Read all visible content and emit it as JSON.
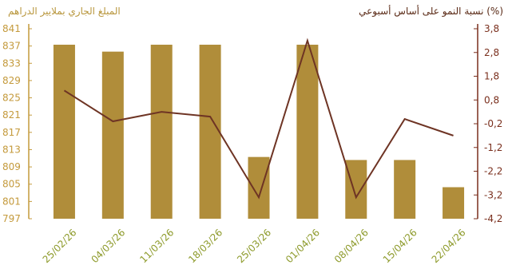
{
  "chart_data": {
    "type": "bar",
    "title": "",
    "left_axis_title": "المبلغ الجاري بملايير الدراهم",
    "right_axis_title": "(%) نسبة النمو على أساس أسبوعي",
    "categories": [
      "25/02/26",
      "04/03/26",
      "11/03/26",
      "18/03/26",
      "25/03/26",
      "01/04/26",
      "08/04/26",
      "15/04/26",
      "22/04/26"
    ],
    "left_axis": {
      "ticks": [
        "841",
        "837",
        "833",
        "829",
        "825",
        "821",
        "817",
        "813",
        "809",
        "805",
        "801",
        "797"
      ],
      "ylim": [
        797,
        841
      ]
    },
    "right_axis": {
      "ticks": [
        "3,8",
        "2,8",
        "1,8",
        "0,8",
        "-0,2",
        "-1,2",
        "-2,2",
        "-3,2",
        "-4,2"
      ],
      "ylim": [
        -4.2,
        3.8
      ]
    },
    "series": [
      {
        "type": "bar",
        "axis": "left",
        "values": [
          837.3,
          835.7,
          837.3,
          837.3,
          811.3,
          837.3,
          810.6,
          810.6,
          804.3
        ]
      },
      {
        "type": "line",
        "axis": "right",
        "values": [
          1.2,
          -0.1,
          0.3,
          0.1,
          -3.3,
          3.3,
          -3.3,
          0.0,
          -0.7
        ]
      }
    ],
    "colors": {
      "bar": "#b08d3a",
      "line": "#6e3424",
      "left_axis": "#c49a3c",
      "right_axis": "#7a2f1d",
      "x_labels": "#8d9a2a"
    },
    "grid": false
  }
}
